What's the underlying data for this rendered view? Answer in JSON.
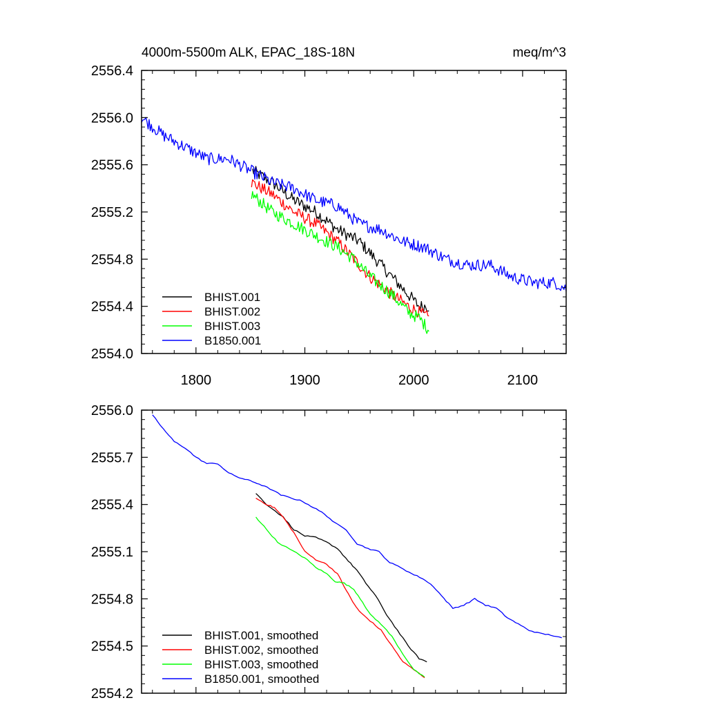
{
  "chart_data": [
    {
      "type": "line",
      "title": "4000m-5500m ALK, EPAC_18S-18N",
      "units": "meq/m^3",
      "xlim": [
        1750,
        2140
      ],
      "ylim": [
        2554.0,
        2556.4
      ],
      "x_ticks": [
        "1800",
        "1900",
        "2000",
        "2100"
      ],
      "y_ticks": [
        "2556.4",
        "2556.0",
        "2555.6",
        "2555.2",
        "2554.8",
        "2554.4",
        "2554.0"
      ],
      "legend_position": "bottom-left",
      "series": [
        {
          "name": "BHIST.001",
          "color": "#000000",
          "noisy": true,
          "points": [
            [
              1852,
              2555.55
            ],
            [
              1870,
              2555.45
            ],
            [
              1890,
              2555.3
            ],
            [
              1910,
              2555.2
            ],
            [
              1930,
              2555.05
            ],
            [
              1950,
              2554.95
            ],
            [
              1965,
              2554.8
            ],
            [
              1980,
              2554.65
            ],
            [
              1995,
              2554.5
            ],
            [
              2005,
              2554.4
            ],
            [
              2014,
              2554.4
            ]
          ]
        },
        {
          "name": "BHIST.002",
          "color": "#ff0000",
          "noisy": true,
          "points": [
            [
              1851,
              2555.45
            ],
            [
              1870,
              2555.35
            ],
            [
              1890,
              2555.2
            ],
            [
              1910,
              2555.1
            ],
            [
              1930,
              2554.95
            ],
            [
              1945,
              2554.8
            ],
            [
              1960,
              2554.65
            ],
            [
              1980,
              2554.5
            ],
            [
              1995,
              2554.4
            ],
            [
              2005,
              2554.35
            ],
            [
              2014,
              2554.3
            ]
          ]
        },
        {
          "name": "BHIST.003",
          "color": "#00ff00",
          "noisy": true,
          "points": [
            [
              1851,
              2555.35
            ],
            [
              1870,
              2555.2
            ],
            [
              1890,
              2555.1
            ],
            [
              1910,
              2555.0
            ],
            [
              1930,
              2554.9
            ],
            [
              1945,
              2554.8
            ],
            [
              1960,
              2554.65
            ],
            [
              1980,
              2554.5
            ],
            [
              1995,
              2554.35
            ],
            [
              2005,
              2554.3
            ],
            [
              2014,
              2554.2
            ]
          ]
        },
        {
          "name": "B1850.001",
          "color": "#0000ff",
          "noisy": true,
          "points": [
            [
              1750,
              2556.0
            ],
            [
              1770,
              2555.85
            ],
            [
              1790,
              2555.75
            ],
            [
              1810,
              2555.65
            ],
            [
              1830,
              2555.65
            ],
            [
              1850,
              2555.55
            ],
            [
              1870,
              2555.45
            ],
            [
              1890,
              2555.4
            ],
            [
              1910,
              2555.3
            ],
            [
              1930,
              2555.25
            ],
            [
              1950,
              2555.1
            ],
            [
              1970,
              2555.05
            ],
            [
              1990,
              2554.95
            ],
            [
              2010,
              2554.9
            ],
            [
              2030,
              2554.8
            ],
            [
              2050,
              2554.75
            ],
            [
              2070,
              2554.75
            ],
            [
              2090,
              2554.65
            ],
            [
              2110,
              2554.6
            ],
            [
              2130,
              2554.6
            ],
            [
              2140,
              2554.55
            ]
          ]
        }
      ]
    },
    {
      "type": "line",
      "title": "",
      "xlim": [
        1750,
        2140
      ],
      "ylim": [
        2554.2,
        2556.0
      ],
      "x_ticks": [],
      "y_ticks": [
        "2556.0",
        "2555.7",
        "2555.4",
        "2555.1",
        "2554.8",
        "2554.5",
        "2554.2"
      ],
      "legend_position": "bottom-left",
      "series": [
        {
          "name": "BHIST.001, smoothed",
          "color": "#000000",
          "noisy": false,
          "points": [
            [
              1855,
              2555.47
            ],
            [
              1865,
              2555.4
            ],
            [
              1880,
              2555.32
            ],
            [
              1890,
              2555.24
            ],
            [
              1900,
              2555.2
            ],
            [
              1910,
              2555.19
            ],
            [
              1920,
              2555.16
            ],
            [
              1930,
              2555.12
            ],
            [
              1940,
              2555.04
            ],
            [
              1948,
              2554.98
            ],
            [
              1956,
              2554.9
            ],
            [
              1965,
              2554.82
            ],
            [
              1975,
              2554.7
            ],
            [
              1985,
              2554.6
            ],
            [
              1995,
              2554.5
            ],
            [
              2005,
              2554.42
            ],
            [
              2012,
              2554.4
            ]
          ]
        },
        {
          "name": "BHIST.002, smoothed",
          "color": "#ff0000",
          "noisy": false,
          "points": [
            [
              1855,
              2555.44
            ],
            [
              1865,
              2555.4
            ],
            [
              1872,
              2555.38
            ],
            [
              1880,
              2555.32
            ],
            [
              1890,
              2555.22
            ],
            [
              1900,
              2555.1
            ],
            [
              1910,
              2555.05
            ],
            [
              1920,
              2555.02
            ],
            [
              1930,
              2554.96
            ],
            [
              1936,
              2554.88
            ],
            [
              1944,
              2554.78
            ],
            [
              1950,
              2554.72
            ],
            [
              1960,
              2554.66
            ],
            [
              1970,
              2554.6
            ],
            [
              1980,
              2554.5
            ],
            [
              1990,
              2554.4
            ],
            [
              2000,
              2554.35
            ],
            [
              2010,
              2554.3
            ]
          ]
        },
        {
          "name": "BHIST.003, smoothed",
          "color": "#00ff00",
          "noisy": false,
          "points": [
            [
              1855,
              2555.32
            ],
            [
              1865,
              2555.24
            ],
            [
              1875,
              2555.16
            ],
            [
              1890,
              2555.1
            ],
            [
              1900,
              2555.06
            ],
            [
              1910,
              2555.0
            ],
            [
              1920,
              2554.96
            ],
            [
              1928,
              2554.91
            ],
            [
              1936,
              2554.9
            ],
            [
              1945,
              2554.86
            ],
            [
              1953,
              2554.78
            ],
            [
              1960,
              2554.7
            ],
            [
              1970,
              2554.64
            ],
            [
              1980,
              2554.56
            ],
            [
              1990,
              2554.45
            ],
            [
              2000,
              2554.35
            ],
            [
              2010,
              2554.3
            ]
          ]
        },
        {
          "name": "B1850.001, smoothed",
          "color": "#0000ff",
          "noisy": false,
          "points": [
            [
              1760,
              2555.97
            ],
            [
              1770,
              2555.88
            ],
            [
              1780,
              2555.8
            ],
            [
              1790,
              2555.76
            ],
            [
              1800,
              2555.7
            ],
            [
              1810,
              2555.66
            ],
            [
              1820,
              2555.66
            ],
            [
              1830,
              2555.6
            ],
            [
              1840,
              2555.57
            ],
            [
              1850,
              2555.55
            ],
            [
              1858,
              2555.53
            ],
            [
              1868,
              2555.5
            ],
            [
              1878,
              2555.46
            ],
            [
              1888,
              2555.44
            ],
            [
              1898,
              2555.42
            ],
            [
              1908,
              2555.38
            ],
            [
              1918,
              2555.34
            ],
            [
              1928,
              2555.28
            ],
            [
              1938,
              2555.24
            ],
            [
              1948,
              2555.15
            ],
            [
              1958,
              2555.12
            ],
            [
              1968,
              2555.1
            ],
            [
              1978,
              2555.03
            ],
            [
              1988,
              2555.0
            ],
            [
              1998,
              2554.96
            ],
            [
              2008,
              2554.93
            ],
            [
              2018,
              2554.88
            ],
            [
              2028,
              2554.8
            ],
            [
              2036,
              2554.74
            ],
            [
              2046,
              2554.76
            ],
            [
              2056,
              2554.8
            ],
            [
              2066,
              2554.76
            ],
            [
              2076,
              2554.74
            ],
            [
              2086,
              2554.68
            ],
            [
              2096,
              2554.64
            ],
            [
              2106,
              2554.6
            ],
            [
              2116,
              2554.58
            ],
            [
              2126,
              2554.57
            ],
            [
              2136,
              2554.55
            ]
          ]
        }
      ]
    }
  ]
}
